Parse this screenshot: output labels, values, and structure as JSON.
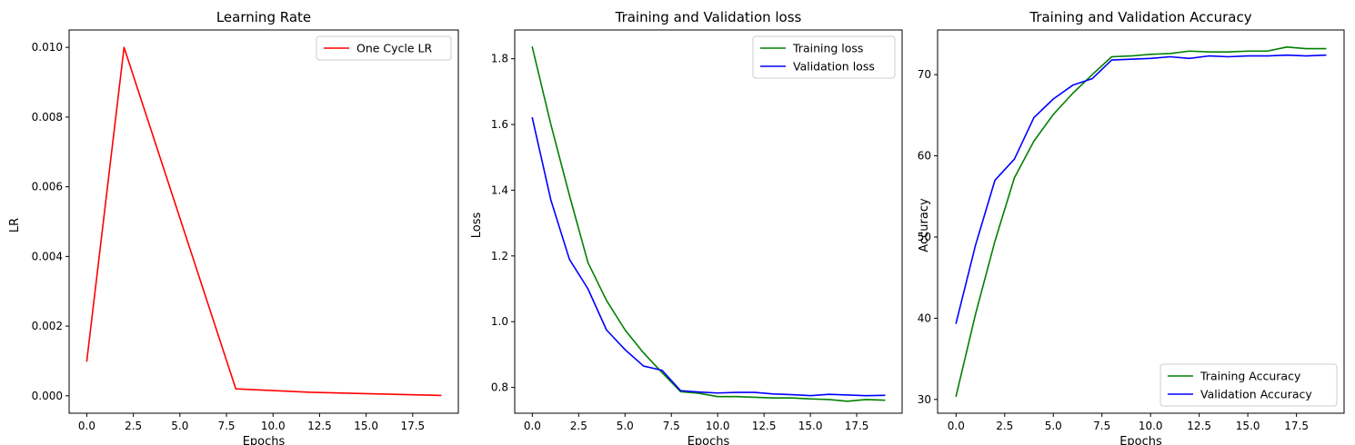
{
  "chart_data": [
    {
      "type": "line",
      "title": "Learning Rate",
      "xlabel": "Epochs",
      "ylabel": "LR",
      "x": [
        0,
        2,
        8,
        12,
        19
      ],
      "xlim": [
        -0.95,
        19.95
      ],
      "ylim": [
        -0.0005,
        0.0105
      ],
      "xticks": [
        0,
        2.5,
        5,
        7.5,
        10,
        12.5,
        15,
        17.5
      ],
      "xtick_labels": [
        "0.0",
        "2.5",
        "5.0",
        "7.5",
        "10.0",
        "12.5",
        "15.0",
        "17.5"
      ],
      "yticks": [
        0,
        0.002,
        0.004,
        0.006,
        0.008,
        0.01
      ],
      "ytick_labels": [
        "0.000",
        "0.002",
        "0.004",
        "0.006",
        "0.008",
        "0.010"
      ],
      "legend_position": "top-right",
      "grid": false,
      "series": [
        {
          "name": "One Cycle LR",
          "color": "#ff0000",
          "values": [
            0.001,
            0.01,
            0.0002,
            0.0001,
            1e-05
          ]
        }
      ]
    },
    {
      "type": "line",
      "title": "Training and Validation loss",
      "xlabel": "Epochs",
      "ylabel": "Loss",
      "x": [
        0,
        1,
        2,
        3,
        4,
        5,
        6,
        7,
        8,
        9,
        10,
        11,
        12,
        13,
        14,
        15,
        16,
        17,
        18,
        19
      ],
      "xlim": [
        -0.95,
        19.95
      ],
      "ylim": [
        0.7215,
        1.8875
      ],
      "xticks": [
        0,
        2.5,
        5,
        7.5,
        10,
        12.5,
        15,
        17.5
      ],
      "xtick_labels": [
        "0.0",
        "2.5",
        "5.0",
        "7.5",
        "10.0",
        "12.5",
        "15.0",
        "17.5"
      ],
      "yticks": [
        0.8,
        1.0,
        1.2,
        1.4,
        1.6,
        1.8
      ],
      "ytick_labels": [
        "0.8",
        "1.0",
        "1.2",
        "1.4",
        "1.6",
        "1.8"
      ],
      "legend_position": "top-right",
      "grid": false,
      "series": [
        {
          "name": "Training loss",
          "color": "#008000",
          "values": [
            1.835,
            1.6,
            1.385,
            1.18,
            1.065,
            0.975,
            0.905,
            0.845,
            0.787,
            0.782,
            0.772,
            0.772,
            0.77,
            0.768,
            0.768,
            0.765,
            0.763,
            0.758,
            0.763,
            0.761
          ]
        },
        {
          "name": "Validation loss",
          "color": "#0000ff",
          "values": [
            1.62,
            1.37,
            1.19,
            1.1,
            0.975,
            0.915,
            0.865,
            0.852,
            0.79,
            0.786,
            0.783,
            0.785,
            0.785,
            0.78,
            0.778,
            0.775,
            0.779,
            0.777,
            0.775,
            0.776
          ]
        }
      ]
    },
    {
      "type": "line",
      "title": "Training and Validation Accuracy",
      "xlabel": "Epochs",
      "ylabel": "Accuracy",
      "x": [
        0,
        1,
        2,
        3,
        4,
        5,
        6,
        7,
        8,
        9,
        10,
        11,
        12,
        13,
        14,
        15,
        16,
        17,
        18,
        19
      ],
      "xlim": [
        -0.95,
        19.95
      ],
      "ylim": [
        28.3,
        75.5
      ],
      "xticks": [
        0,
        2.5,
        5,
        7.5,
        10,
        12.5,
        15,
        17.5
      ],
      "xtick_labels": [
        "0.0",
        "2.5",
        "5.0",
        "7.5",
        "10.0",
        "12.5",
        "15.0",
        "17.5"
      ],
      "yticks": [
        30,
        40,
        50,
        60,
        70
      ],
      "ytick_labels": [
        "30",
        "40",
        "50",
        "60",
        "70"
      ],
      "legend_position": "bottom-right",
      "grid": false,
      "series": [
        {
          "name": "Training Accuracy",
          "color": "#008000",
          "values": [
            30.4,
            40.5,
            49.5,
            57.3,
            61.8,
            65.1,
            67.7,
            70.0,
            72.2,
            72.3,
            72.5,
            72.6,
            72.9,
            72.8,
            72.8,
            72.9,
            72.9,
            73.4,
            73.2,
            73.2
          ]
        },
        {
          "name": "Validation Accuracy",
          "color": "#0000ff",
          "values": [
            39.4,
            49.0,
            57.0,
            59.6,
            64.7,
            67.0,
            68.7,
            69.5,
            71.8,
            71.9,
            72.0,
            72.2,
            72.0,
            72.3,
            72.2,
            72.3,
            72.3,
            72.4,
            72.3,
            72.4
          ]
        }
      ]
    }
  ]
}
